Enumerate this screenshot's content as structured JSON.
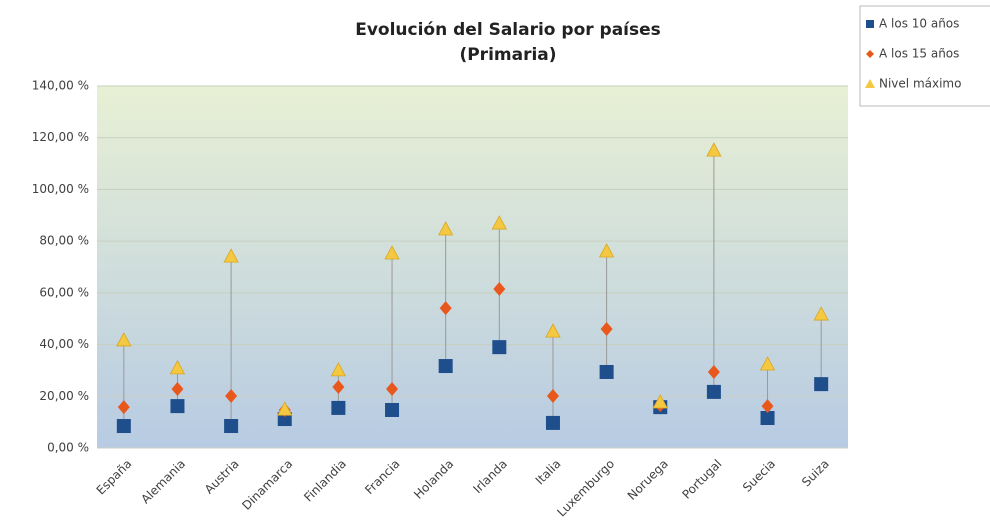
{
  "chart_data": {
    "type": "highlow-scatter",
    "title": "Evolución del Salario por países",
    "subtitle": "(Primaria)",
    "categories": [
      "España",
      "Alemania",
      "Austria",
      "Dinamarca",
      "Finlandia",
      "Francia",
      "Holanda",
      "Irlanda",
      "Italia",
      "Luxemburgo",
      "Noruega",
      "Portugal",
      "Suecia",
      "Suiza"
    ],
    "series": [
      {
        "name": "A los 10 años",
        "color": "#1f4e8c",
        "marker": "square",
        "values": [
          8.5,
          16.2,
          8.5,
          11.2,
          15.5,
          14.7,
          31.7,
          39,
          9.7,
          29.4,
          15.8,
          21.7,
          11.6,
          24.7
        ]
      },
      {
        "name": "A los 15 años",
        "color": "#e8581c",
        "marker": "diamond",
        "values": [
          15.8,
          22.8,
          20.1,
          14.7,
          23.6,
          22.8,
          54.1,
          61.5,
          20.1,
          46,
          16.6,
          29.4,
          16.2,
          null
        ]
      },
      {
        "name": "Nivel máximo",
        "color": "#f5c842",
        "marker": "triangle",
        "values": [
          41.8,
          31,
          74.2,
          15,
          30.2,
          75.4,
          84.7,
          87,
          45.2,
          76.2,
          17.8,
          115.2,
          32.5,
          51.8
        ]
      }
    ],
    "ylim": [
      0,
      140
    ],
    "yticks": [
      {
        "value": 0,
        "label": "0,00 %"
      },
      {
        "value": 20,
        "label": "20,00 %"
      },
      {
        "value": 40,
        "label": "40,00 %"
      },
      {
        "value": 60,
        "label": "60,00 %"
      },
      {
        "value": 80,
        "label": "80,00 %"
      },
      {
        "value": 100,
        "label": "100,00 %"
      },
      {
        "value": 120,
        "label": "120,00 %"
      },
      {
        "value": 140,
        "label": "140,00 %"
      }
    ],
    "grid": true,
    "legend": "top-right"
  }
}
